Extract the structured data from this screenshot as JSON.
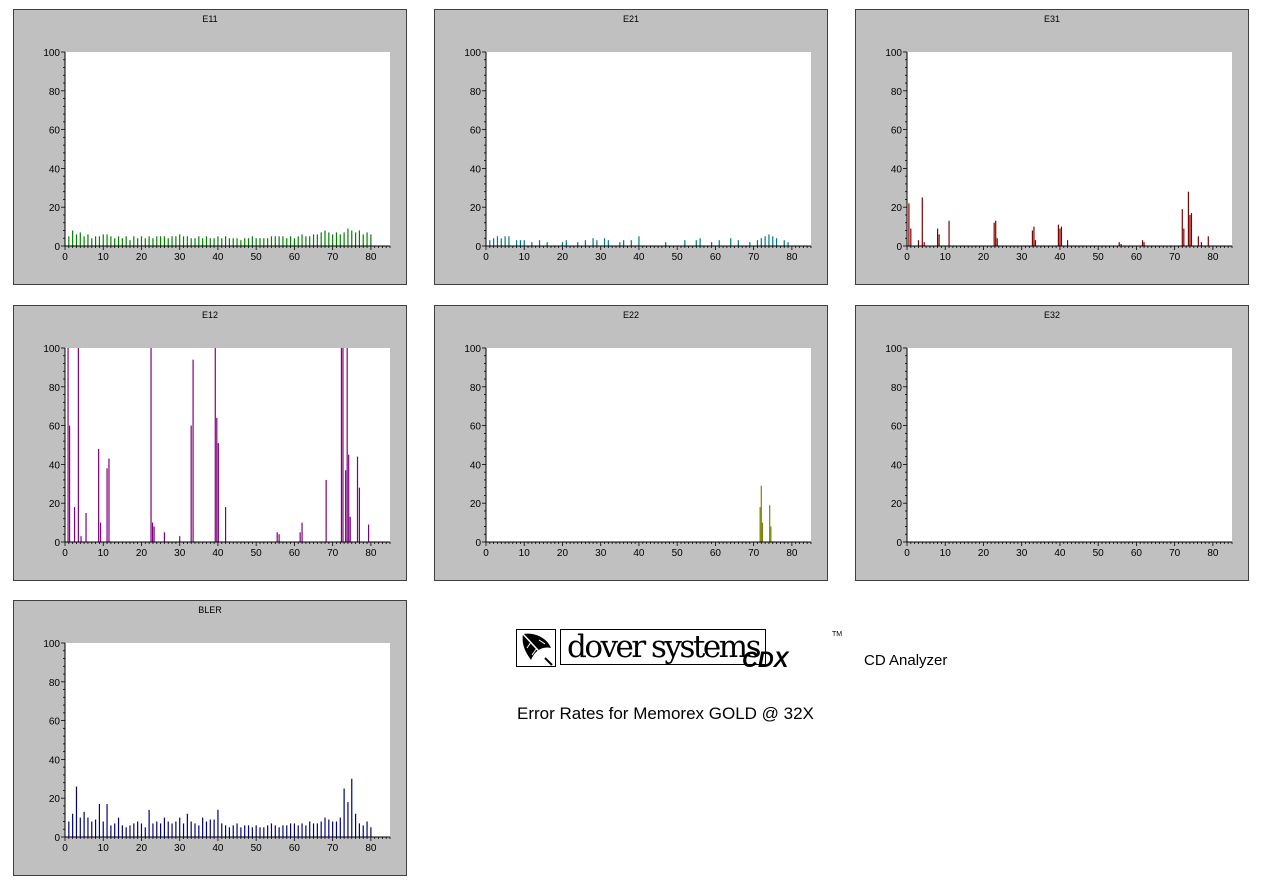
{
  "chart_data": [
    {
      "id": "e11",
      "type": "bar",
      "title": "E11",
      "color": "#008000",
      "xlim": [
        0,
        85
      ],
      "ylim": [
        0,
        100
      ],
      "xticks": [
        "0",
        "10",
        "20",
        "30",
        "40",
        "50",
        "60",
        "70",
        "80"
      ],
      "yticks": [
        "0",
        "20",
        "40",
        "60",
        "80",
        "100"
      ],
      "x": [
        1,
        2,
        3,
        4,
        5,
        6,
        7,
        8,
        9,
        10,
        11,
        12,
        13,
        14,
        15,
        16,
        17,
        18,
        19,
        20,
        21,
        22,
        23,
        24,
        25,
        26,
        27,
        28,
        29,
        30,
        31,
        32,
        33,
        34,
        35,
        36,
        37,
        38,
        39,
        40,
        41,
        42,
        43,
        44,
        45,
        46,
        47,
        48,
        49,
        50,
        51,
        52,
        53,
        54,
        55,
        56,
        57,
        58,
        59,
        60,
        61,
        62,
        63,
        64,
        65,
        66,
        67,
        68,
        69,
        70,
        71,
        72,
        73,
        74,
        75,
        76,
        77,
        78,
        79,
        80
      ],
      "values": [
        5,
        8,
        6,
        7,
        5,
        6,
        4,
        5,
        5,
        6,
        6,
        5,
        4,
        5,
        4,
        5,
        3,
        5,
        4,
        5,
        4,
        5,
        4,
        5,
        5,
        5,
        4,
        5,
        5,
        6,
        5,
        5,
        4,
        4,
        5,
        4,
        5,
        4,
        4,
        5,
        4,
        5,
        4,
        4,
        4,
        3,
        4,
        4,
        5,
        4,
        4,
        4,
        4,
        5,
        5,
        5,
        5,
        4,
        5,
        4,
        5,
        6,
        5,
        5,
        6,
        6,
        7,
        8,
        7,
        6,
        7,
        6,
        7,
        9,
        8,
        7,
        8,
        6,
        7,
        6
      ]
    },
    {
      "id": "e21",
      "type": "bar",
      "title": "E21",
      "color": "#007a80",
      "xlim": [
        0,
        85
      ],
      "ylim": [
        0,
        100
      ],
      "xticks": [
        "0",
        "10",
        "20",
        "30",
        "40",
        "50",
        "60",
        "70",
        "80"
      ],
      "yticks": [
        "0",
        "20",
        "40",
        "60",
        "80",
        "100"
      ],
      "x": [
        1,
        2,
        3,
        4,
        5,
        6,
        8,
        9,
        10,
        12,
        14,
        16,
        20,
        21,
        24,
        26,
        28,
        29,
        31,
        32,
        35,
        36,
        38,
        40,
        47,
        52,
        55,
        56,
        59,
        61,
        64,
        66,
        69,
        71,
        72,
        73,
        74,
        75,
        76,
        78,
        79
      ],
      "values": [
        3,
        4,
        5,
        4,
        5,
        5,
        3,
        3,
        3,
        2,
        3,
        2,
        2,
        3,
        2,
        3,
        4,
        3,
        4,
        3,
        2,
        3,
        3,
        5,
        2,
        3,
        3,
        4,
        2,
        3,
        4,
        3,
        2,
        3,
        4,
        5,
        6,
        5,
        4,
        3,
        2
      ]
    },
    {
      "id": "e31",
      "type": "bar",
      "title": "E31",
      "color": "#800000",
      "xlim": [
        0,
        85
      ],
      "ylim": [
        0,
        100
      ],
      "xticks": [
        "0",
        "10",
        "20",
        "30",
        "40",
        "50",
        "60",
        "70",
        "80"
      ],
      "yticks": [
        "0",
        "20",
        "40",
        "60",
        "80",
        "100"
      ],
      "x": [
        0.5,
        1,
        3,
        4,
        4.5,
        8,
        8.4,
        11,
        22.8,
        23.2,
        23.6,
        32.8,
        33.2,
        33.6,
        39.6,
        40,
        40.4,
        42,
        55.5,
        56,
        61.6,
        62,
        72,
        72.4,
        73.6,
        74,
        74.4,
        76.2,
        77,
        78.8
      ],
      "values": [
        22,
        9,
        3,
        25,
        2,
        9,
        6,
        13,
        12,
        13,
        4,
        8,
        10,
        3,
        11,
        9,
        10,
        3,
        2,
        1,
        3,
        2,
        19,
        9,
        28,
        16,
        17,
        5,
        2,
        5
      ]
    },
    {
      "id": "e12",
      "type": "bar",
      "title": "E12",
      "color": "#800080",
      "xlim": [
        0,
        85
      ],
      "ylim": [
        0,
        100
      ],
      "xticks": [
        "0",
        "10",
        "20",
        "30",
        "40",
        "50",
        "60",
        "70",
        "80"
      ],
      "yticks": [
        "0",
        "20",
        "40",
        "60",
        "80",
        "100"
      ],
      "x": [
        0.8,
        1.2,
        2.5,
        3.5,
        4.2,
        5.5,
        8.8,
        9.3,
        11,
        11.5,
        22.5,
        22.9,
        23.3,
        26,
        30,
        33,
        33.5,
        39.3,
        39.7,
        40.1,
        42,
        55.5,
        56,
        61.5,
        62,
        68.3,
        72.3,
        72.7,
        73.4,
        73.8,
        74.2,
        74.6,
        76.5,
        77,
        79.4
      ],
      "values": [
        100,
        60,
        18,
        100,
        3,
        15,
        48,
        10,
        38,
        43,
        100,
        10,
        8,
        5,
        3,
        60,
        94,
        100,
        64,
        51,
        18,
        5,
        4,
        5,
        10,
        32,
        100,
        100,
        37,
        100,
        45,
        13,
        44,
        28,
        9
      ]
    },
    {
      "id": "e22",
      "type": "bar",
      "title": "E22",
      "color": "#808000",
      "xlim": [
        0,
        85
      ],
      "ylim": [
        0,
        100
      ],
      "xticks": [
        "0",
        "10",
        "20",
        "30",
        "40",
        "50",
        "60",
        "70",
        "80"
      ],
      "yticks": [
        "0",
        "20",
        "40",
        "60",
        "80",
        "100"
      ],
      "x": [
        71.7,
        72,
        72.3,
        74.2,
        74.5
      ],
      "values": [
        18,
        29,
        10,
        19,
        8
      ]
    },
    {
      "id": "e32",
      "type": "bar",
      "title": "E32",
      "color": "#000080",
      "xlim": [
        0,
        85
      ],
      "ylim": [
        0,
        100
      ],
      "xticks": [
        "0",
        "10",
        "20",
        "30",
        "40",
        "50",
        "60",
        "70",
        "80"
      ],
      "yticks": [
        "0",
        "20",
        "40",
        "60",
        "80",
        "100"
      ],
      "x": [],
      "values": []
    },
    {
      "id": "bler",
      "type": "bar",
      "title": "BLER",
      "color": "#000080",
      "xlim": [
        0,
        85
      ],
      "ylim": [
        0,
        100
      ],
      "xticks": [
        "0",
        "10",
        "20",
        "30",
        "40",
        "50",
        "60",
        "70",
        "80"
      ],
      "yticks": [
        "0",
        "20",
        "40",
        "60",
        "80",
        "100"
      ],
      "x": [
        1,
        2,
        3,
        4,
        5,
        6,
        7,
        8,
        9,
        10,
        11,
        12,
        13,
        14,
        15,
        16,
        17,
        18,
        19,
        20,
        21,
        22,
        23,
        24,
        25,
        26,
        27,
        28,
        29,
        30,
        31,
        32,
        33,
        34,
        35,
        36,
        37,
        38,
        39,
        40,
        41,
        42,
        43,
        44,
        45,
        46,
        47,
        48,
        49,
        50,
        51,
        52,
        53,
        54,
        55,
        56,
        57,
        58,
        59,
        60,
        61,
        62,
        63,
        64,
        65,
        66,
        67,
        68,
        69,
        70,
        71,
        72,
        73,
        74,
        75,
        76,
        77,
        78,
        79,
        80
      ],
      "values": [
        8,
        12,
        26,
        10,
        13,
        10,
        8,
        9,
        17,
        8,
        17,
        6,
        7,
        10,
        6,
        5,
        6,
        7,
        8,
        7,
        5,
        14,
        7,
        8,
        7,
        10,
        8,
        7,
        8,
        10,
        7,
        12,
        8,
        7,
        6,
        10,
        8,
        9,
        9,
        14,
        7,
        6,
        5,
        6,
        7,
        5,
        6,
        6,
        5,
        6,
        5,
        5,
        6,
        7,
        6,
        5,
        6,
        6,
        7,
        7,
        6,
        7,
        6,
        8,
        7,
        7,
        8,
        10,
        9,
        8,
        8,
        10,
        25,
        18,
        30,
        12,
        7,
        6,
        8,
        5
      ]
    }
  ],
  "branding": {
    "logo_text": "dover systems",
    "product": "CDX",
    "trademark": "TM",
    "product_desc": "CD Analyzer",
    "subtitle": "Error Rates for Memorex GOLD @ 32X"
  }
}
